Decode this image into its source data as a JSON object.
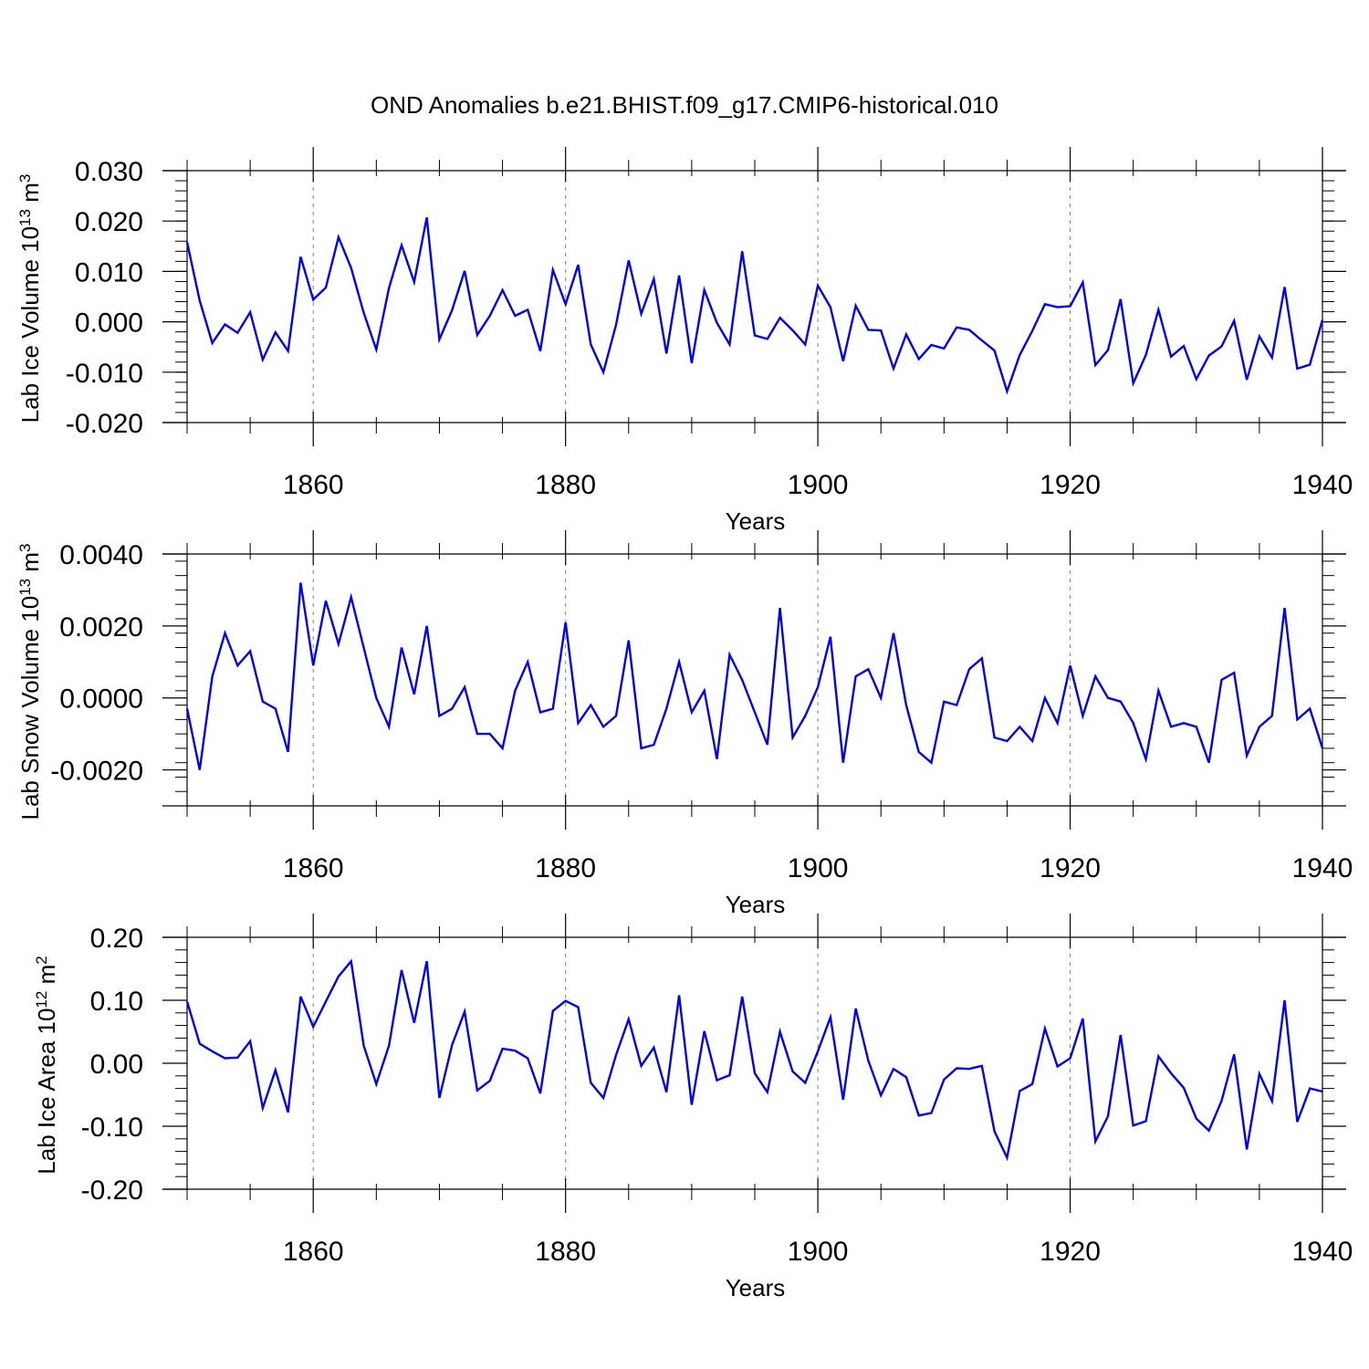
{
  "title": "OND Anomalies b.e21.BHIST.f09_g17.CMIP6-historical.010",
  "colors": {
    "line": "#0000ff",
    "axis": "#000000",
    "grid": "#808080",
    "background": "#ffffff"
  },
  "chart_data": [
    {
      "type": "line",
      "ylabel": "Lab Ice Volume 10",
      "ylabel_sup": "13",
      "ylabel_unit": " m",
      "ylabel_unit_sup": "3",
      "xlabel": "Years",
      "xlim": [
        1850,
        1940
      ],
      "ylim": [
        -0.02,
        0.03
      ],
      "yticks": [
        -0.02,
        -0.01,
        0.0,
        0.01,
        0.02,
        0.03
      ],
      "ytick_labels": [
        "-0.020",
        "-0.010",
        "0.000",
        "0.010",
        "0.020",
        "0.030"
      ],
      "xticks": [
        1860,
        1880,
        1900,
        1920,
        1940
      ],
      "xtick_labels": [
        "1860",
        "1880",
        "1900",
        "1920",
        "1940"
      ],
      "grid_x": [
        1860,
        1880,
        1900,
        1920
      ],
      "series": [
        {
          "name": "Lab Ice Volume",
          "x": [
            1850,
            1851,
            1852,
            1853,
            1854,
            1855,
            1856,
            1857,
            1858,
            1859,
            1860,
            1861,
            1862,
            1863,
            1864,
            1865,
            1866,
            1867,
            1868,
            1869,
            1870,
            1871,
            1872,
            1873,
            1874,
            1875,
            1876,
            1877,
            1878,
            1879,
            1880,
            1881,
            1882,
            1883,
            1884,
            1885,
            1886,
            1887,
            1888,
            1889,
            1890,
            1891,
            1892,
            1893,
            1894,
            1895,
            1896,
            1897,
            1898,
            1899,
            1900,
            1901,
            1902,
            1903,
            1904,
            1905,
            1906,
            1907,
            1908,
            1909,
            1910,
            1911,
            1912,
            1913,
            1914,
            1915,
            1916,
            1917,
            1918,
            1919,
            1920,
            1921,
            1922,
            1923,
            1924,
            1925,
            1926,
            1927,
            1928,
            1929,
            1930,
            1931,
            1932,
            1933,
            1934,
            1935,
            1936,
            1937,
            1938,
            1939,
            1940
          ],
          "values": [
            0.0158,
            0.0042,
            -0.0042,
            -0.0005,
            -0.0022,
            0.0019,
            -0.0075,
            -0.0021,
            -0.0058,
            0.0129,
            0.0044,
            0.0068,
            0.0168,
            0.0107,
            0.0018,
            -0.0055,
            0.0067,
            0.0152,
            0.0079,
            0.0207,
            -0.0035,
            0.0023,
            0.0101,
            -0.0026,
            0.0012,
            0.0063,
            0.0012,
            0.0024,
            -0.0058,
            0.0103,
            0.0035,
            0.0113,
            -0.0045,
            -0.01,
            -0.0006,
            0.0122,
            0.0016,
            0.0085,
            -0.0063,
            0.0092,
            -0.0082,
            0.0063,
            -0.0002,
            -0.0045,
            0.014,
            -0.0027,
            -0.0034,
            0.0008,
            -0.0017,
            -0.0045,
            0.0072,
            0.0029,
            -0.0078,
            0.0032,
            -0.0016,
            -0.0017,
            -0.0093,
            -0.0025,
            -0.0074,
            -0.0046,
            -0.0053,
            -0.0011,
            -0.0016,
            -0.0037,
            -0.0057,
            -0.0138,
            -0.0066,
            -0.0018,
            0.0035,
            0.0029,
            0.0031,
            0.0078,
            -0.0086,
            -0.0056,
            0.0045,
            -0.0122,
            -0.0066,
            0.0024,
            -0.0069,
            -0.0048,
            -0.0114,
            -0.0067,
            -0.0049,
            0.0002,
            -0.0115,
            -0.0029,
            -0.0071,
            0.0069,
            -0.0093,
            -0.0085,
            0.0004
          ]
        }
      ]
    },
    {
      "type": "line",
      "ylabel": "Lab Snow Volume 10",
      "ylabel_sup": "13",
      "ylabel_unit": " m",
      "ylabel_unit_sup": "3",
      "xlabel": "Years",
      "xlim": [
        1850,
        1940
      ],
      "ylim": [
        -0.003,
        0.004
      ],
      "yticks": [
        -0.002,
        0.0,
        0.002,
        0.004
      ],
      "ytick_labels": [
        "-0.0020",
        "0.0000",
        "0.0020",
        "0.0040"
      ],
      "xticks": [
        1860,
        1880,
        1900,
        1920,
        1940
      ],
      "xtick_labels": [
        "1860",
        "1880",
        "1900",
        "1920",
        "1940"
      ],
      "grid_x": [
        1860,
        1880,
        1900,
        1920
      ],
      "series": [
        {
          "name": "Lab Snow Volume",
          "x": [
            1850,
            1851,
            1852,
            1853,
            1854,
            1855,
            1856,
            1857,
            1858,
            1859,
            1860,
            1861,
            1862,
            1863,
            1864,
            1865,
            1866,
            1867,
            1868,
            1869,
            1870,
            1871,
            1872,
            1873,
            1874,
            1875,
            1876,
            1877,
            1878,
            1879,
            1880,
            1881,
            1882,
            1883,
            1884,
            1885,
            1886,
            1887,
            1888,
            1889,
            1890,
            1891,
            1892,
            1893,
            1894,
            1895,
            1896,
            1897,
            1898,
            1899,
            1900,
            1901,
            1902,
            1903,
            1904,
            1905,
            1906,
            1907,
            1908,
            1909,
            1910,
            1911,
            1912,
            1913,
            1914,
            1915,
            1916,
            1917,
            1918,
            1919,
            1920,
            1921,
            1922,
            1923,
            1924,
            1925,
            1926,
            1927,
            1928,
            1929,
            1930,
            1931,
            1932,
            1933,
            1934,
            1935,
            1936,
            1937,
            1938,
            1939,
            1940
          ],
          "values": [
            -0.0003,
            -0.002,
            0.0006,
            0.0018,
            0.0009,
            0.0013,
            -0.0001,
            -0.0003,
            -0.0015,
            0.0032,
            0.0009,
            0.0027,
            0.0015,
            0.0028,
            0.0014,
            0.0,
            -0.0008,
            0.0014,
            0.0001,
            0.002,
            -0.0005,
            -0.0003,
            0.0003,
            -0.001,
            -0.001,
            -0.0014,
            0.0002,
            0.001,
            -0.0004,
            -0.0003,
            0.0021,
            -0.0007,
            -0.0002,
            -0.0008,
            -0.0005,
            0.0016,
            -0.0014,
            -0.0013,
            -0.0003,
            0.001,
            -0.0004,
            0.0002,
            -0.0017,
            0.0012,
            0.0005,
            -0.0004,
            -0.0013,
            0.0025,
            -0.0011,
            -0.0005,
            0.0003,
            0.0017,
            -0.0018,
            0.0006,
            0.0008,
            0.0,
            0.0018,
            -0.0002,
            -0.0015,
            -0.0018,
            -0.0001,
            -0.0002,
            0.0008,
            0.0011,
            -0.0011,
            -0.0012,
            -0.0008,
            -0.0012,
            0.0,
            -0.0007,
            0.0009,
            -0.0005,
            0.0006,
            0.0,
            -0.0001,
            -0.0007,
            -0.0017,
            0.0002,
            -0.0008,
            -0.0007,
            -0.0008,
            -0.0018,
            0.0005,
            0.0007,
            -0.0016,
            -0.0008,
            -0.0005,
            0.0025,
            -0.0006,
            -0.0003,
            -0.0014
          ]
        }
      ]
    },
    {
      "type": "line",
      "ylabel": "Lab Ice Area 10",
      "ylabel_sup": "12",
      "ylabel_unit": " m",
      "ylabel_unit_sup": "2",
      "xlabel": "Years",
      "xlim": [
        1850,
        1940
      ],
      "ylim": [
        -0.2,
        0.2
      ],
      "yticks": [
        -0.2,
        -0.1,
        0.0,
        0.1,
        0.2
      ],
      "ytick_labels": [
        "-0.20",
        "-0.10",
        "0.00",
        "0.10",
        "0.20"
      ],
      "xticks": [
        1860,
        1880,
        1900,
        1920,
        1940
      ],
      "xtick_labels": [
        "1860",
        "1880",
        "1900",
        "1920",
        "1940"
      ],
      "grid_x": [
        1860,
        1880,
        1900,
        1920
      ],
      "series": [
        {
          "name": "Lab Ice Area",
          "x": [
            1850,
            1851,
            1852,
            1853,
            1854,
            1855,
            1856,
            1857,
            1858,
            1859,
            1860,
            1861,
            1862,
            1863,
            1864,
            1865,
            1866,
            1867,
            1868,
            1869,
            1870,
            1871,
            1872,
            1873,
            1874,
            1875,
            1876,
            1877,
            1878,
            1879,
            1880,
            1881,
            1882,
            1883,
            1884,
            1885,
            1886,
            1887,
            1888,
            1889,
            1890,
            1891,
            1892,
            1893,
            1894,
            1895,
            1896,
            1897,
            1898,
            1899,
            1900,
            1901,
            1902,
            1903,
            1904,
            1905,
            1906,
            1907,
            1908,
            1909,
            1910,
            1911,
            1912,
            1913,
            1914,
            1915,
            1916,
            1917,
            1918,
            1919,
            1920,
            1921,
            1922,
            1923,
            1924,
            1925,
            1926,
            1927,
            1928,
            1929,
            1930,
            1931,
            1932,
            1933,
            1934,
            1935,
            1936,
            1937,
            1938,
            1939,
            1940
          ],
          "values": [
            0.098,
            0.031,
            0.019,
            0.008,
            0.009,
            0.035,
            -0.071,
            -0.011,
            -0.078,
            0.106,
            0.058,
            0.098,
            0.138,
            0.162,
            0.028,
            -0.033,
            0.028,
            0.148,
            0.064,
            0.162,
            -0.055,
            0.029,
            0.082,
            -0.043,
            -0.028,
            0.023,
            0.02,
            0.008,
            -0.048,
            0.083,
            0.099,
            0.089,
            -0.031,
            -0.055,
            0.013,
            0.07,
            -0.004,
            0.025,
            -0.046,
            0.108,
            -0.066,
            0.051,
            -0.027,
            -0.019,
            0.106,
            -0.016,
            -0.046,
            0.05,
            -0.013,
            -0.031,
            0.019,
            0.073,
            -0.058,
            0.087,
            0.004,
            -0.051,
            -0.009,
            -0.022,
            -0.083,
            -0.079,
            -0.026,
            -0.008,
            -0.009,
            -0.004,
            -0.108,
            -0.15,
            -0.044,
            -0.033,
            0.055,
            -0.005,
            0.008,
            0.071,
            -0.124,
            -0.084,
            0.045,
            -0.099,
            -0.092,
            0.011,
            -0.016,
            -0.039,
            -0.088,
            -0.107,
            -0.06,
            0.014,
            -0.137,
            -0.017,
            -0.06,
            0.1,
            -0.093,
            -0.04,
            -0.045
          ]
        }
      ]
    }
  ]
}
